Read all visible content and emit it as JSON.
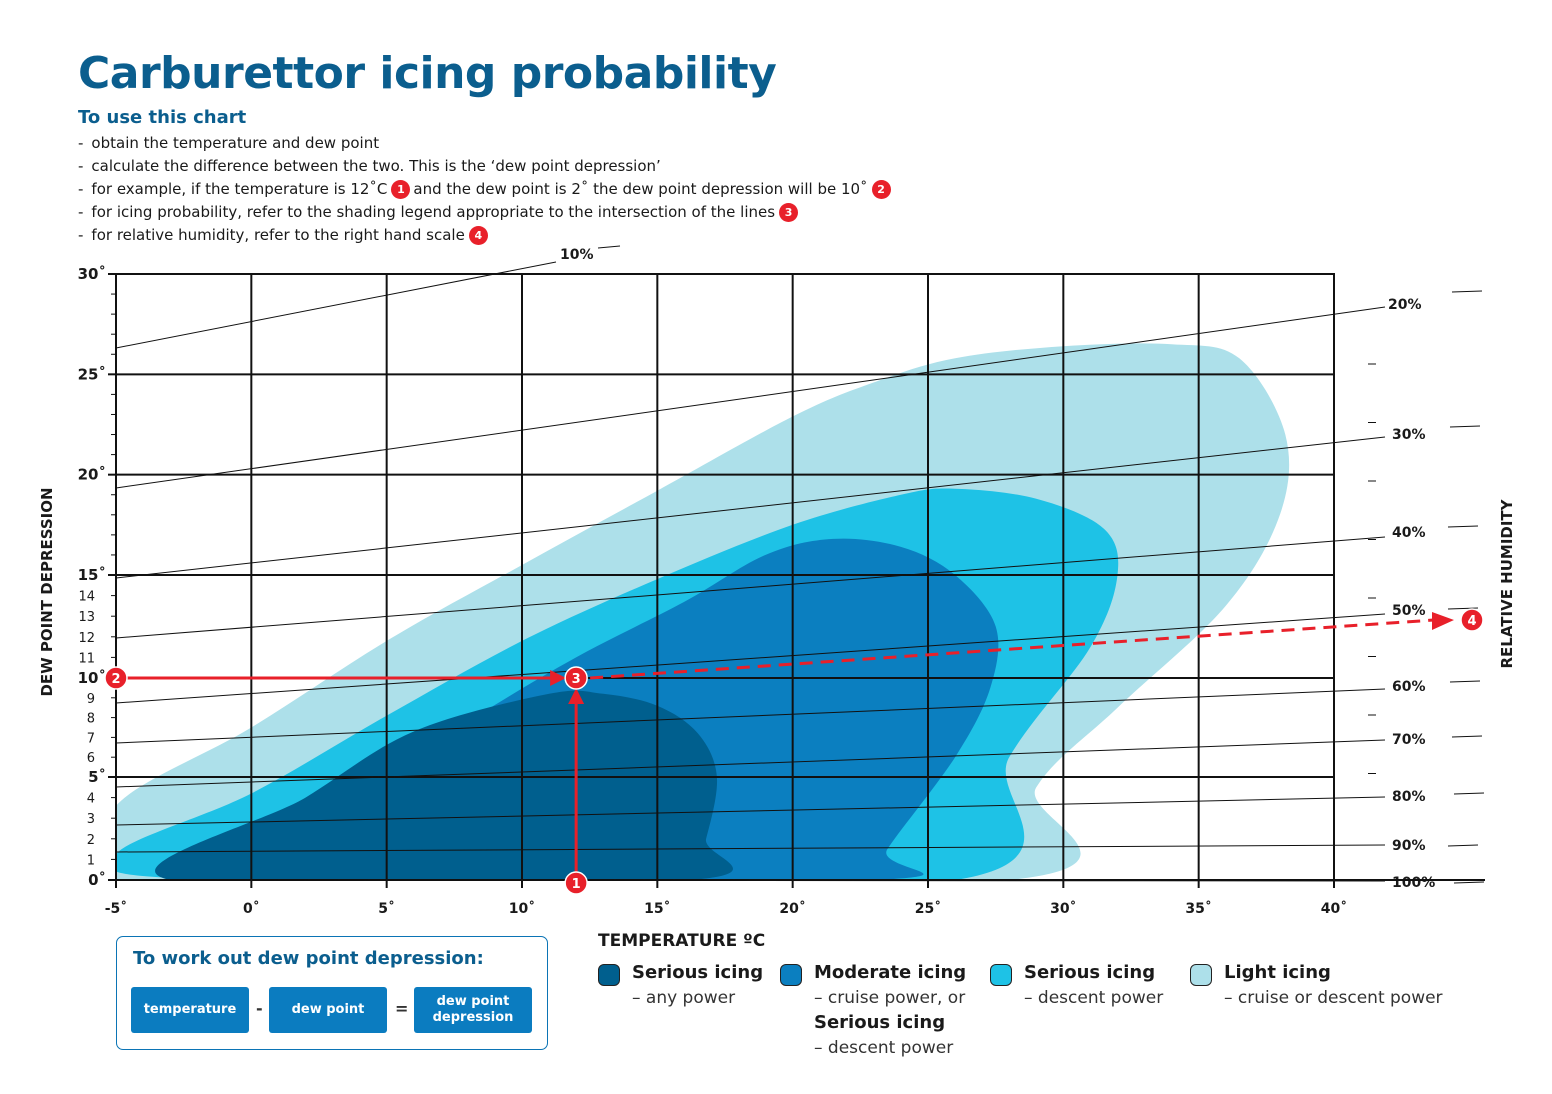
{
  "title": "Carburettor icing probability",
  "subtitle": "To use this chart",
  "instructions": [
    {
      "text": "obtain the temperature and dew point",
      "badge": null
    },
    {
      "text": "calculate the difference between the two. This is the ‘dew point depression’",
      "badge": null
    },
    {
      "text": "for example, if the temperature is 12˚C",
      "badge": "1",
      "text2": "and the dew point is 2˚ the dew point depression will be 10˚",
      "badge2": "2"
    },
    {
      "text": "for icing probability, refer to the shading legend appropriate to the intersection of the lines",
      "badge": "3"
    },
    {
      "text": "for relative humidity, refer to the right hand scale",
      "badge": "4"
    }
  ],
  "chart_data": {
    "type": "area",
    "xlabel": "TEMPERATURE ºC",
    "ylabel": "DEW POINT DEPRESSION",
    "y2label": "RELATIVE HUMIDITY",
    "xlim": [
      -5,
      40
    ],
    "ylim": [
      0,
      30
    ],
    "x_ticks": [
      "-5˚",
      "0˚",
      "5˚",
      "10˚",
      "15˚",
      "20˚",
      "25˚",
      "30˚",
      "35˚",
      "40˚"
    ],
    "y_major_ticks": [
      "0˚",
      "5˚",
      "10˚",
      "15˚",
      "20˚",
      "25˚",
      "30˚"
    ],
    "y_minor_ticks": [
      "1",
      "2",
      "3",
      "4",
      "6",
      "7",
      "8",
      "9",
      "11",
      "12",
      "13",
      "14"
    ],
    "humidity_lines": [
      "10%",
      "20%",
      "30%",
      "40%",
      "50%",
      "60%",
      "70%",
      "80%",
      "90%",
      "100%"
    ],
    "grid": true,
    "regions": [
      {
        "name": "Light icing",
        "color": "#ade0ea",
        "points": [
          [
            -5,
            3.6
          ],
          [
            0,
            7.5
          ],
          [
            5,
            11.8
          ],
          [
            10,
            15.5
          ],
          [
            15,
            19.2
          ],
          [
            20,
            22.9
          ],
          [
            23,
            24.6
          ],
          [
            26,
            25.8
          ],
          [
            30,
            26.4
          ],
          [
            34,
            26.5
          ],
          [
            36.5,
            25.8
          ],
          [
            38.2,
            22
          ],
          [
            38,
            18
          ],
          [
            36,
            13.5
          ],
          [
            32,
            8.5
          ],
          [
            29,
            4.5
          ],
          [
            28,
            0
          ],
          [
            -5,
            0
          ]
        ]
      },
      {
        "name": "Serious icing – descent power",
        "color": "#1ec2e6",
        "points": [
          [
            -5,
            1.2
          ],
          [
            0,
            4.2
          ],
          [
            5,
            8.1
          ],
          [
            10,
            11.8
          ],
          [
            15,
            14.8
          ],
          [
            20,
            17.5
          ],
          [
            24,
            19
          ],
          [
            26,
            19.3
          ],
          [
            29,
            18.8
          ],
          [
            31.5,
            17.3
          ],
          [
            32,
            15
          ],
          [
            31,
            11.5
          ],
          [
            28,
            6
          ],
          [
            26,
            0
          ],
          [
            -1,
            0
          ]
        ]
      },
      {
        "name": "Moderate icing – cruise power, or Serious icing – descent power",
        "color": "#0b7fc0",
        "points": [
          [
            -1,
            0
          ],
          [
            3,
            3.5
          ],
          [
            8,
            7.8
          ],
          [
            12,
            11
          ],
          [
            16,
            13.7
          ],
          [
            19,
            16
          ],
          [
            21.5,
            16.8
          ],
          [
            24,
            16.4
          ],
          [
            26,
            15
          ],
          [
            27.5,
            12.5
          ],
          [
            27.3,
            9.5
          ],
          [
            26,
            6
          ],
          [
            23.5,
            1.5
          ],
          [
            23,
            0
          ]
        ]
      },
      {
        "name": "Serious icing – any power",
        "color": "#005f8e",
        "points": [
          [
            -3,
            0
          ],
          [
            2,
            4
          ],
          [
            6,
            7.3
          ],
          [
            11,
            9.2
          ],
          [
            13,
            9.2
          ],
          [
            15,
            8.6
          ],
          [
            16.5,
            7.2
          ],
          [
            17.2,
            5
          ],
          [
            16.8,
            2
          ],
          [
            16.2,
            0
          ]
        ]
      }
    ],
    "example": {
      "temperature": 12,
      "dew_point": 2,
      "dew_point_depression": 10,
      "relative_humidity": "50%"
    }
  },
  "example_markers": {
    "m1": "1",
    "m2": "2",
    "m3": "3",
    "m4": "4"
  },
  "dpd_box": {
    "title": "To work out dew point depression:",
    "chip1": "temperature",
    "op1": "-",
    "chip2": "dew point",
    "op2": "=",
    "chip3": "dew point depression"
  },
  "legend": [
    {
      "title": "Serious icing",
      "sub": [
        "– any power"
      ],
      "color": "#005f8e"
    },
    {
      "title": "Moderate icing",
      "sub": [
        "– cruise power, or"
      ],
      "title2": "Serious icing",
      "sub2": "– descent power",
      "color": "#0b7fc0"
    },
    {
      "title": "Serious icing",
      "sub": [
        "– descent power"
      ],
      "color": "#1ec2e6"
    },
    {
      "title": "Light icing",
      "sub": [
        "– cruise or descent power"
      ],
      "color": "#ade0ea"
    }
  ]
}
